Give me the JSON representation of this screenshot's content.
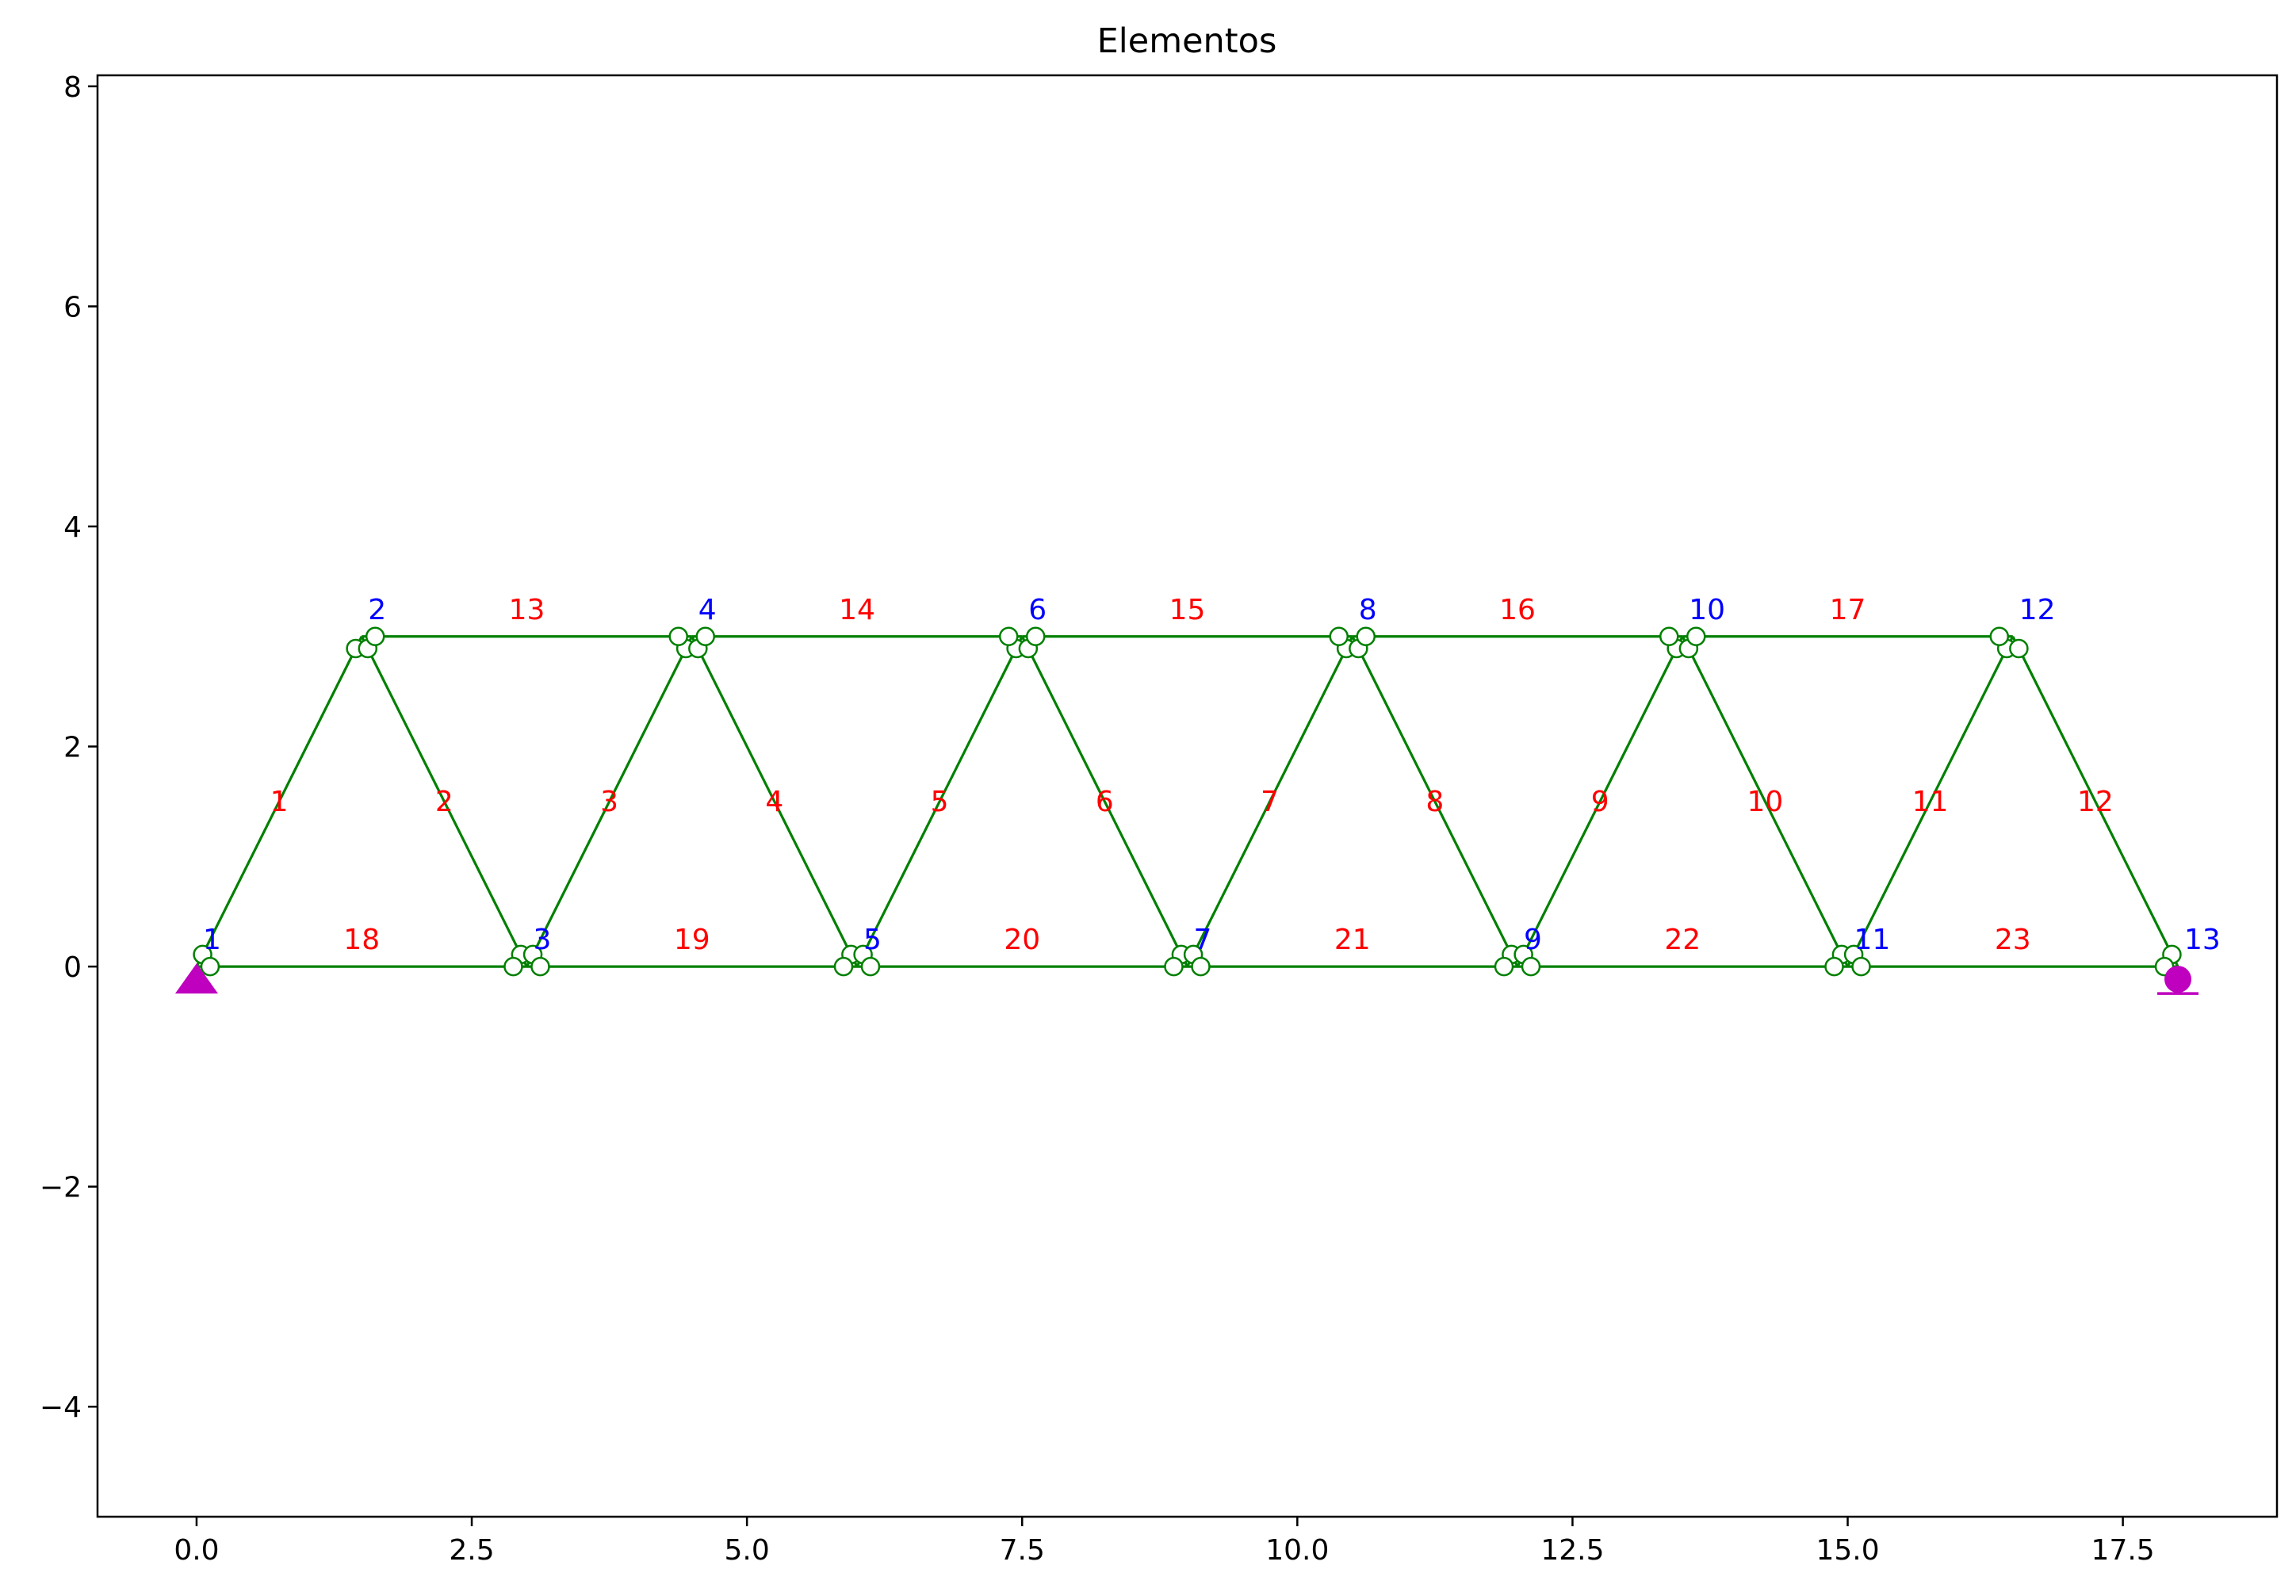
{
  "chart_data": {
    "type": "scatter",
    "title": "Elementos",
    "xlabel": "",
    "ylabel": "",
    "xlim": [
      -0.9,
      18.9
    ],
    "ylim": [
      -5.0,
      8.1
    ],
    "xticks": [
      0.0,
      2.5,
      5.0,
      7.5,
      10.0,
      12.5,
      15.0,
      17.5
    ],
    "xtick_labels": [
      "0.0",
      "2.5",
      "5.0",
      "7.5",
      "10.0",
      "12.5",
      "15.0",
      "17.5"
    ],
    "yticks": [
      -4,
      -2,
      0,
      2,
      4,
      6,
      8
    ],
    "ytick_labels": [
      "−4",
      "−2",
      "0",
      "2",
      "4",
      "6",
      "8"
    ],
    "grid": false,
    "colors": {
      "element": "#008000",
      "node_marker_edge": "#008000",
      "node_marker_face": "#ffffff",
      "node_label": "#0000ff",
      "element_label": "#ff0000",
      "support": "#bf00bf"
    },
    "nodes": [
      {
        "id": "1",
        "x": 0.0,
        "y": 0.0
      },
      {
        "id": "2",
        "x": 1.5,
        "y": 3.0
      },
      {
        "id": "3",
        "x": 3.0,
        "y": 0.0
      },
      {
        "id": "4",
        "x": 4.5,
        "y": 3.0
      },
      {
        "id": "5",
        "x": 6.0,
        "y": 0.0
      },
      {
        "id": "6",
        "x": 7.5,
        "y": 3.0
      },
      {
        "id": "7",
        "x": 9.0,
        "y": 0.0
      },
      {
        "id": "8",
        "x": 10.5,
        "y": 3.0
      },
      {
        "id": "9",
        "x": 12.0,
        "y": 0.0
      },
      {
        "id": "10",
        "x": 13.5,
        "y": 3.0
      },
      {
        "id": "11",
        "x": 15.0,
        "y": 0.0
      },
      {
        "id": "12",
        "x": 16.5,
        "y": 3.0
      },
      {
        "id": "13",
        "x": 18.0,
        "y": 0.0
      }
    ],
    "elements": [
      {
        "id": "1",
        "from": "1",
        "to": "2"
      },
      {
        "id": "2",
        "from": "2",
        "to": "3"
      },
      {
        "id": "3",
        "from": "3",
        "to": "4"
      },
      {
        "id": "4",
        "from": "4",
        "to": "5"
      },
      {
        "id": "5",
        "from": "5",
        "to": "6"
      },
      {
        "id": "6",
        "from": "6",
        "to": "7"
      },
      {
        "id": "7",
        "from": "7",
        "to": "8"
      },
      {
        "id": "8",
        "from": "8",
        "to": "9"
      },
      {
        "id": "9",
        "from": "9",
        "to": "10"
      },
      {
        "id": "10",
        "from": "10",
        "to": "11"
      },
      {
        "id": "11",
        "from": "11",
        "to": "12"
      },
      {
        "id": "12",
        "from": "12",
        "to": "13"
      },
      {
        "id": "13",
        "from": "2",
        "to": "4"
      },
      {
        "id": "14",
        "from": "4",
        "to": "6"
      },
      {
        "id": "15",
        "from": "6",
        "to": "8"
      },
      {
        "id": "16",
        "from": "8",
        "to": "10"
      },
      {
        "id": "17",
        "from": "10",
        "to": "12"
      },
      {
        "id": "18",
        "from": "1",
        "to": "3"
      },
      {
        "id": "19",
        "from": "3",
        "to": "5"
      },
      {
        "id": "20",
        "from": "5",
        "to": "7"
      },
      {
        "id": "21",
        "from": "7",
        "to": "9"
      },
      {
        "id": "22",
        "from": "9",
        "to": "11"
      },
      {
        "id": "23",
        "from": "11",
        "to": "13"
      }
    ],
    "supports": [
      {
        "node": "1",
        "kind": "pin",
        "marker": "triangle"
      },
      {
        "node": "13",
        "kind": "roller",
        "marker": "circle-on-line"
      }
    ]
  }
}
